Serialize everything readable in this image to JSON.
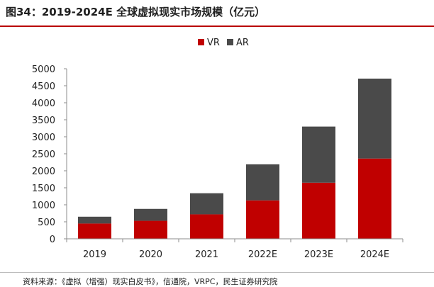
{
  "title": "图34：2019-2024E 全球虚拟现实市场规模（亿元）",
  "source": "资料来源：《虚拟（增强）现实白皮书》，信通院，VRPC，民生证券研究院",
  "chart_data": {
    "type": "bar",
    "stacked": true,
    "categories": [
      "2019",
      "2020",
      "2021",
      "2022E",
      "2023E",
      "2024E"
    ],
    "series": [
      {
        "name": "VR",
        "color": "#c00000",
        "values": [
          450,
          530,
          720,
          1130,
          1650,
          2360
        ]
      },
      {
        "name": "AR",
        "color": "#4a4a4a",
        "values": [
          200,
          350,
          620,
          1060,
          1650,
          2350
        ]
      }
    ],
    "ylim": [
      0,
      5000
    ],
    "yticks": [
      0,
      500,
      1000,
      1500,
      2000,
      2500,
      3000,
      3500,
      4000,
      4500,
      5000
    ],
    "legend_position": "top-center",
    "grid": false
  }
}
